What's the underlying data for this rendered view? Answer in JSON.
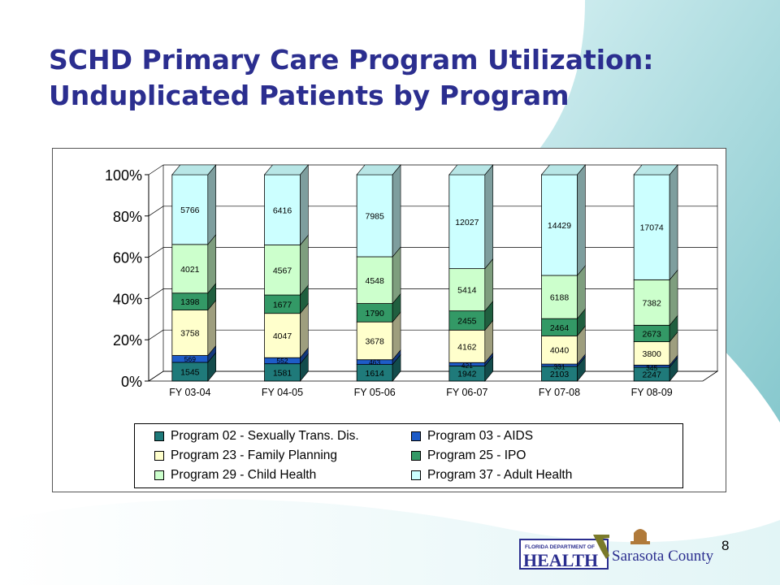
{
  "slide": {
    "title_line1": "SCHD Primary Care Program Utilization:",
    "title_line2": "Unduplicated Patients by Program",
    "page_number": "8"
  },
  "logos": {
    "doh_small": "FLORIDA DEPARTMENT OF",
    "doh_large": "HEALTH",
    "county": "Sarasota County"
  },
  "colors": {
    "title": "#2b2e8f",
    "teal_bg": "#7ec8cc"
  },
  "chart_data": {
    "type": "bar",
    "stacked": "percent",
    "three_d": true,
    "categories": [
      "FY 03-04",
      "FY 04-05",
      "FY 05-06",
      "FY 06-07",
      "FY 07-08",
      "FY 08-09"
    ],
    "y_ticks": [
      "0%",
      "20%",
      "40%",
      "60%",
      "80%",
      "100%"
    ],
    "ylim": [
      0,
      100
    ],
    "legend_position": "bottom",
    "series": [
      {
        "name": "Program 02 - Sexually Trans. Dis.",
        "color": "#1f7a7a",
        "values": [
          1545,
          1581,
          1614,
          1942,
          2103,
          2247
        ],
        "labels": [
          "1545",
          "1581",
          "1614",
          "1942",
          "2103",
          "2247"
        ]
      },
      {
        "name": "Program 03 - AIDS",
        "color": "#1e5cc8",
        "values": [
          569,
          552,
          463,
          421,
          331,
          345
        ],
        "labels": [
          "569",
          "552",
          "463",
          "421",
          "331",
          "345"
        ]
      },
      {
        "name": "Program 23 - Family Planning",
        "color": "#ffffcc",
        "values": [
          3758,
          4047,
          3678,
          4162,
          4040,
          3800
        ],
        "labels": [
          "3758",
          "4047",
          "3678",
          "4162",
          "4040",
          "3800"
        ]
      },
      {
        "name": "Program 25 - IPO",
        "color": "#339966",
        "values": [
          1398,
          1677,
          1790,
          2455,
          2464,
          2673
        ],
        "labels": [
          "1398",
          "1677",
          "1790",
          "2455",
          "2464",
          "2673"
        ]
      },
      {
        "name": "Program 29 - Child Health",
        "color": "#ccffcc",
        "values": [
          4021,
          4567,
          4548,
          5414,
          6188,
          7382
        ],
        "labels": [
          "4021",
          "4567",
          "4548",
          "5414",
          "6188",
          "7382"
        ]
      },
      {
        "name": "Program 37 - Adult Health",
        "color": "#ccffff",
        "values": [
          5766,
          6416,
          7985,
          12027,
          14429,
          17074
        ],
        "labels": [
          "5766",
          "6416",
          "7985",
          "12027",
          "14429",
          "17074"
        ]
      }
    ],
    "legend_order": [
      0,
      1,
      2,
      3,
      4,
      5
    ]
  }
}
